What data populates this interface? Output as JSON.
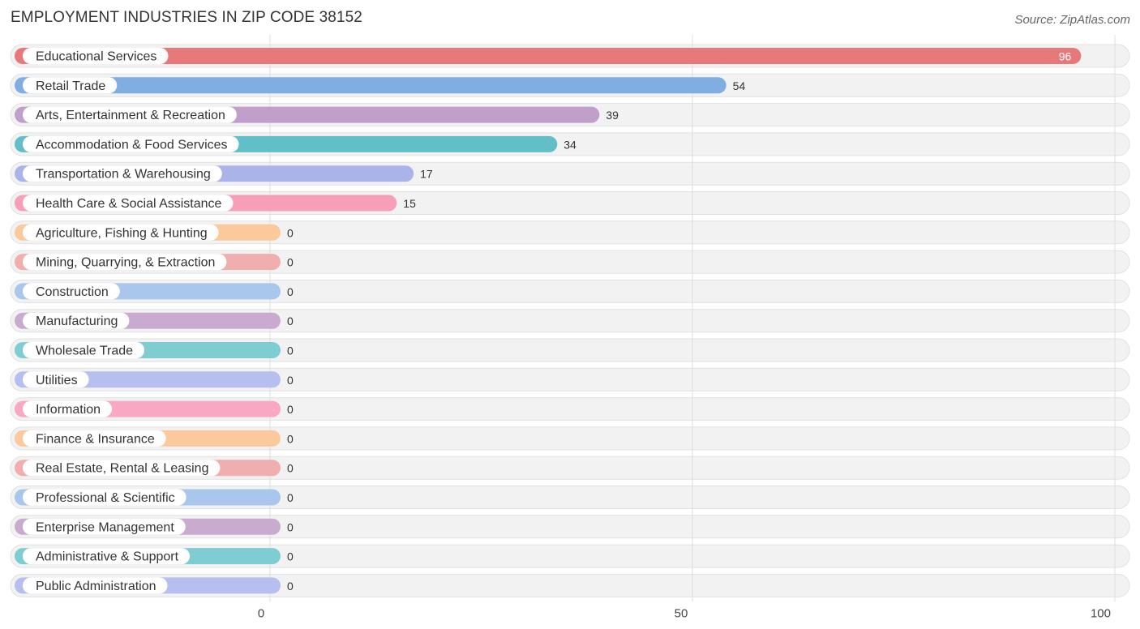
{
  "title": "EMPLOYMENT INDUSTRIES IN ZIP CODE 38152",
  "source": "Source: ZipAtlas.com",
  "chart_data": {
    "type": "bar",
    "orientation": "horizontal",
    "title": "EMPLOYMENT INDUSTRIES IN ZIP CODE 38152",
    "xlabel": "",
    "ylabel": "",
    "xlim": [
      0,
      100
    ],
    "x_ticks": [
      0,
      50,
      100
    ],
    "grid": true,
    "legend": "none",
    "categories": [
      "Educational Services",
      "Retail Trade",
      "Arts, Entertainment & Recreation",
      "Accommodation & Food Services",
      "Transportation & Warehousing",
      "Health Care & Social Assistance",
      "Agriculture, Fishing & Hunting",
      "Mining, Quarrying, & Extraction",
      "Construction",
      "Manufacturing",
      "Wholesale Trade",
      "Utilities",
      "Information",
      "Finance & Insurance",
      "Real Estate, Rental & Leasing",
      "Professional & Scientific",
      "Enterprise Management",
      "Administrative & Support",
      "Public Administration"
    ],
    "values": [
      96,
      54,
      39,
      34,
      17,
      15,
      0,
      0,
      0,
      0,
      0,
      0,
      0,
      0,
      0,
      0,
      0,
      0,
      0
    ],
    "colors": [
      "#e8797a",
      "#80ade2",
      "#c0a0ca",
      "#62bfc8",
      "#aab4e8",
      "#f79fb8",
      "#fbc99b",
      "#f1aeae",
      "#a9c6ec",
      "#c9abd0",
      "#7fcdd2",
      "#b6bff0",
      "#f8a8c3",
      "#fbc99b",
      "#f1aeae",
      "#a9c6ec",
      "#c9abd0",
      "#7fcdd2",
      "#b6bff0"
    ]
  }
}
